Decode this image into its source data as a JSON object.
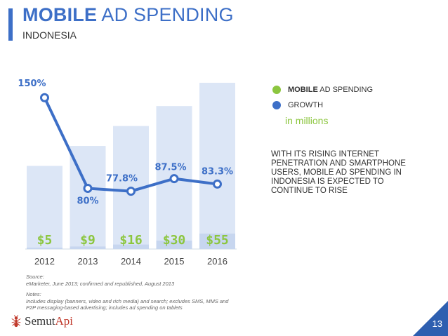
{
  "header": {
    "title_bold": "MOBILE",
    "title_rest": " AD SPENDING",
    "subtitle": "INDONESIA"
  },
  "legend": {
    "spending_label_bold": "MOBILE",
    "spending_label_rest": " AD SPENDING",
    "growth_label": "GROWTH",
    "unit": "in millions",
    "spending_color": "#8cc63f",
    "growth_color": "#3d6fc7"
  },
  "note": "WITH ITS RISING INTERNET PENETRATION AND SMARTPHONE USERS, MOBILE AD SPENDING IN INDONESIA IS EXPECTED TO CONTINUE TO RISE",
  "footer": {
    "source_label": "Source:",
    "source_text": "eMarketer, June 2013; confirmed and republished, August 2013",
    "notes_label": "Notes:",
    "notes_text": "Includes display (banners, video and rich media) and search; excludes SMS, MMS and P2P messaging-based advertising; includes ad spending on tablets",
    "logo_text_1": "Semut",
    "logo_text_2": "Api",
    "page_number": "13"
  },
  "chart_data": {
    "type": "bar",
    "title": "MOBILE AD SPENDING",
    "categories": [
      "2012",
      "2013",
      "2014",
      "2015",
      "2016"
    ],
    "series": [
      {
        "name": "MOBILE AD SPENDING",
        "unit": "in millions",
        "values": [
          5,
          9,
          16,
          30,
          55
        ],
        "labels": [
          "$5",
          "$9",
          "$16",
          "$30",
          "$55"
        ]
      },
      {
        "name": "GROWTH",
        "unit": "%",
        "values": [
          150,
          80,
          77.8,
          87.5,
          83.3
        ],
        "labels": [
          "150%",
          "80%",
          "77.8%",
          "87.5%",
          "83.3%"
        ]
      }
    ],
    "background_bars": [
      0.5,
      0.62,
      0.74,
      0.86,
      1.0
    ],
    "ylim_spending": [
      0,
      55
    ],
    "ylim_growth": [
      70,
      155
    ]
  }
}
